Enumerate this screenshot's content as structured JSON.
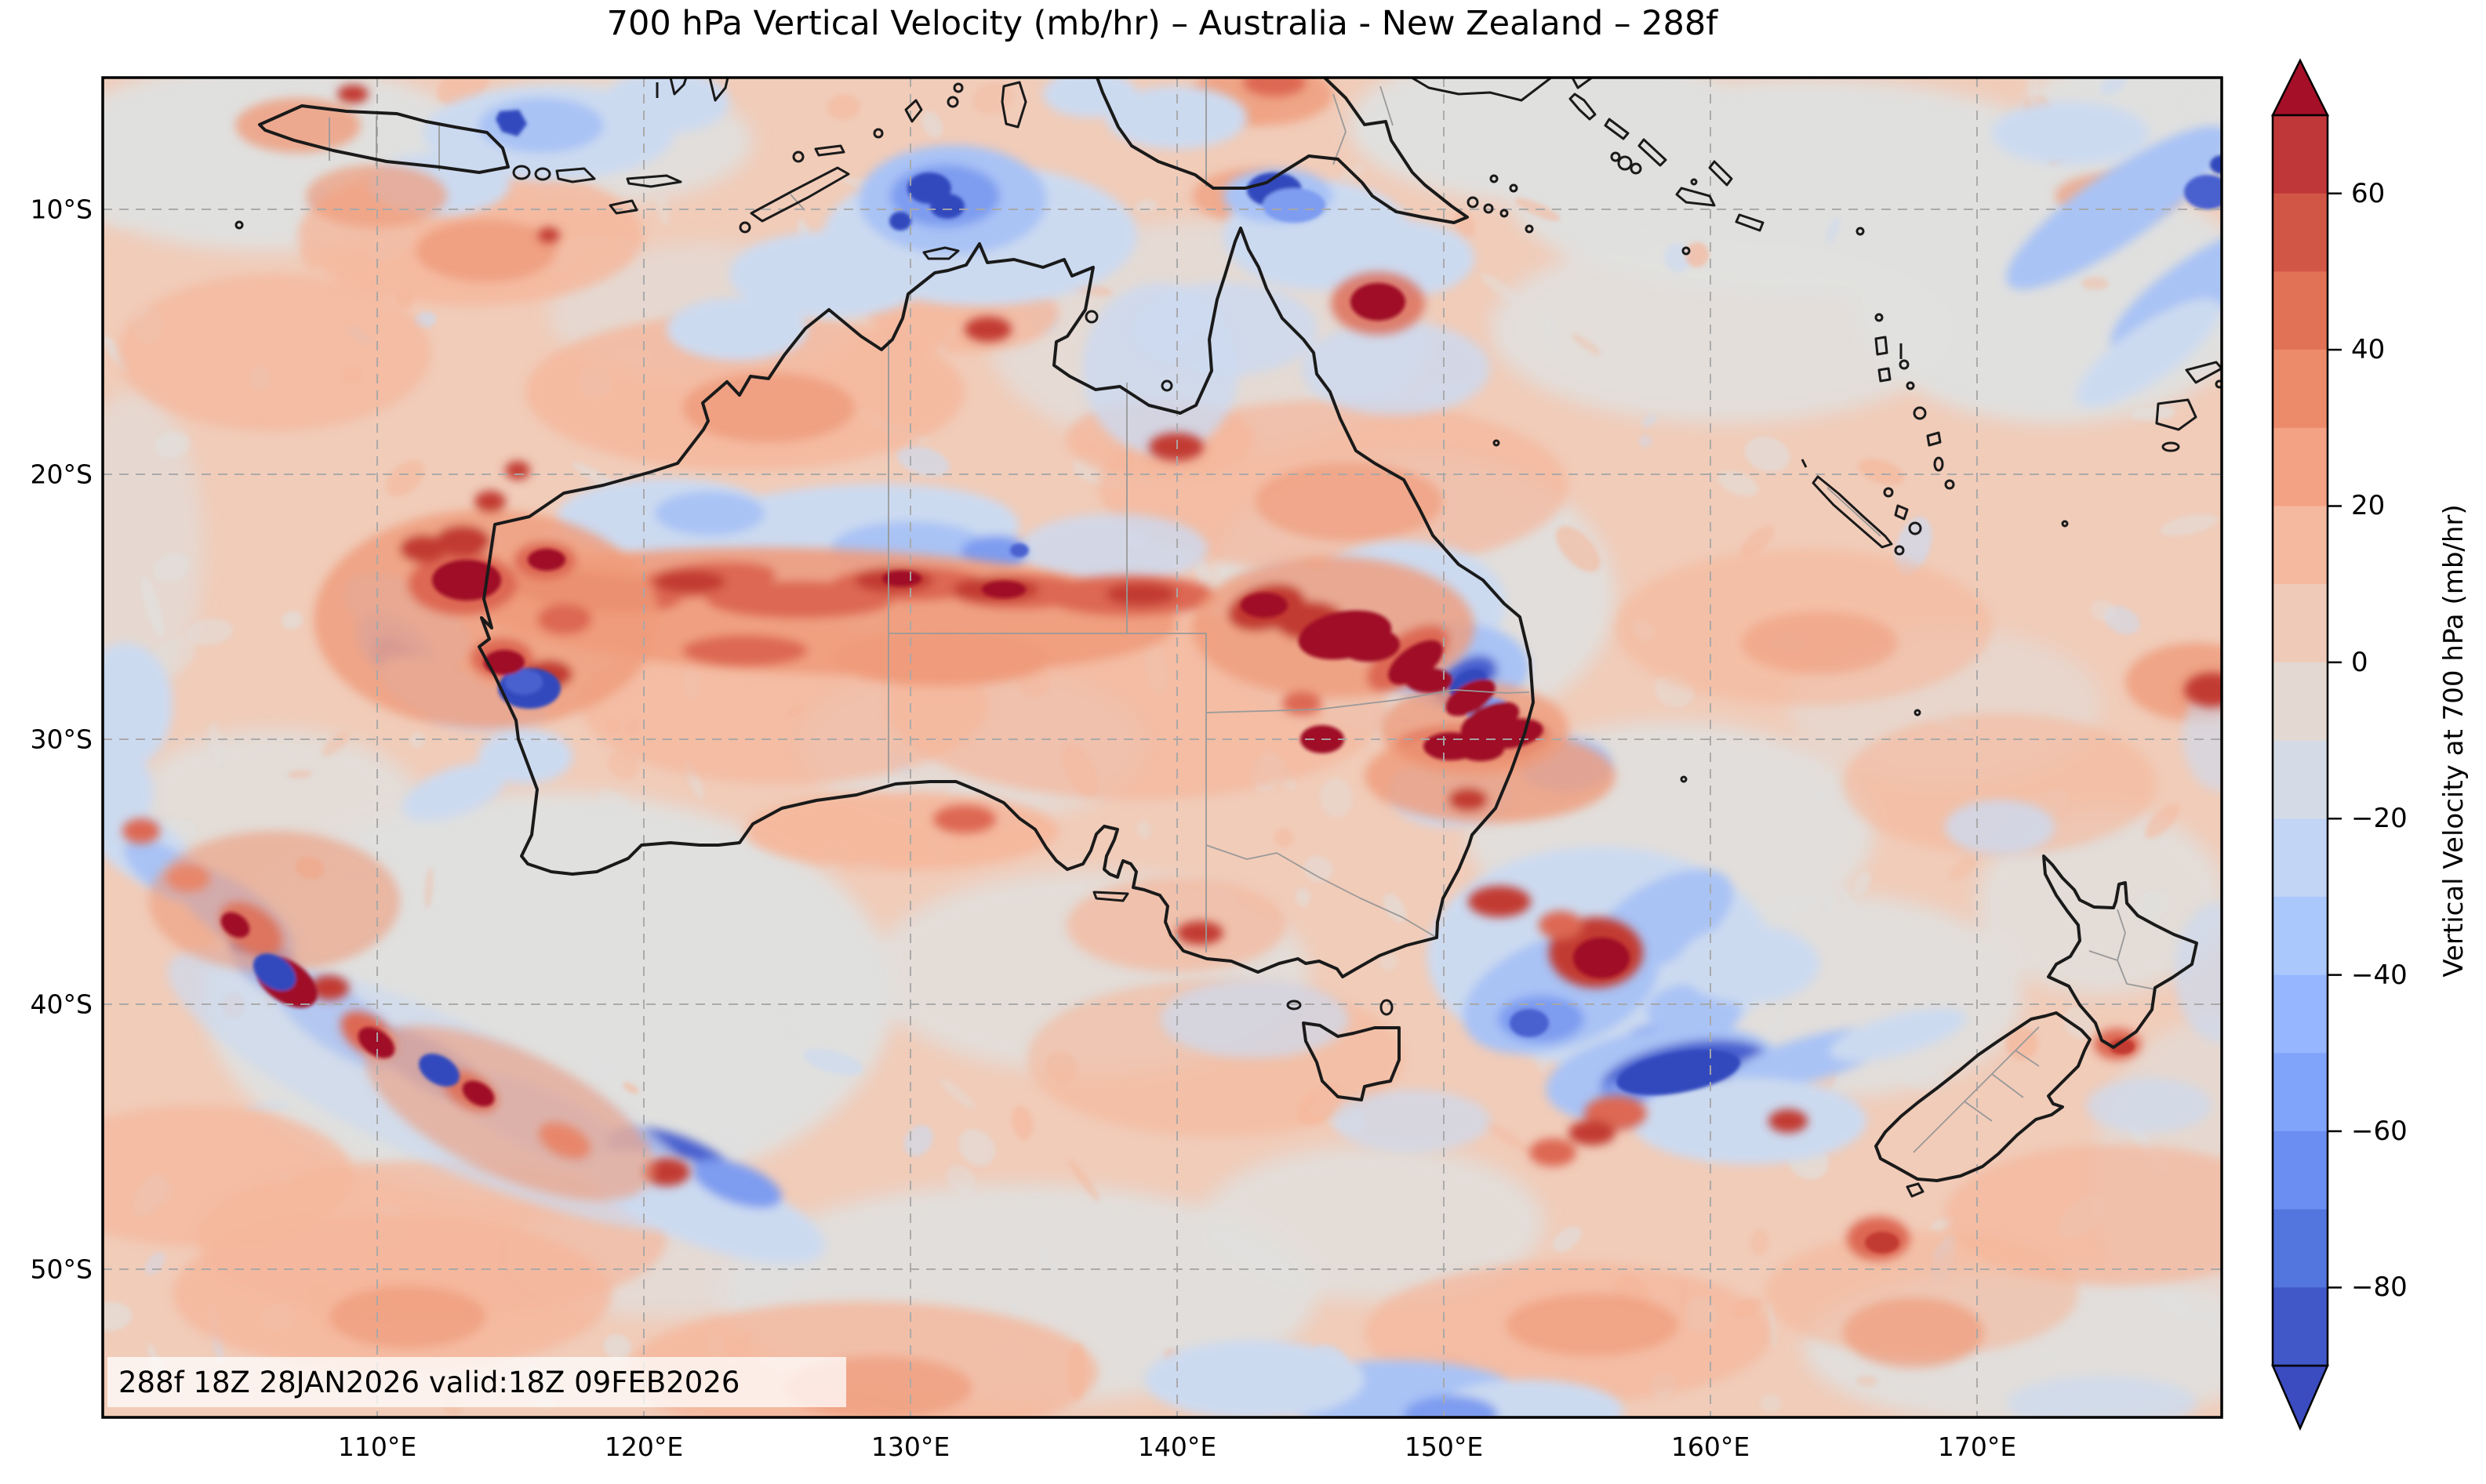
{
  "title": "700 hPa Vertical Velocity (mb/hr) – Australia - New Zealand – 288f",
  "annotation": "288f 18Z 28JAN2026 valid:18Z 09FEB2026",
  "colorbar": {
    "label": "Vertical Velocity at 700 hPa (mb/hr)",
    "tick_labels": [
      "60",
      "40",
      "20",
      "0",
      "−20",
      "−40",
      "−60",
      "−80"
    ],
    "tick_values": [
      60,
      40,
      20,
      0,
      -20,
      -40,
      -60,
      -80
    ],
    "level_min": -90,
    "level_max": 70,
    "level_step": 10,
    "segment_colors_top_to_bottom": [
      "#c0373a",
      "#d25645",
      "#e17256",
      "#ec8b6a",
      "#f4a284",
      "#f5b9a0",
      "#f0cab8",
      "#e3d8d2",
      "#d5dbe6",
      "#c3d5f4",
      "#abc8fd",
      "#96b7ff",
      "#81a4fb",
      "#6a8ef1",
      "#5375de",
      "#4058c8"
    ],
    "extend_over_color": "#a50f28",
    "extend_under_color": "#3b4cc0"
  },
  "axes": {
    "lon_tick_labels": [
      "110°E",
      "120°E",
      "130°E",
      "140°E",
      "150°E",
      "160°E",
      "170°E"
    ],
    "lat_tick_labels": [
      "10°S",
      "20°S",
      "30°S",
      "40°S",
      "50°S"
    ]
  },
  "map_colors": {
    "background": "#f1ccb9",
    "gray_patch": "#e0e0df",
    "salmon_light": "#f5b79b",
    "salmon": "#ef9b7b",
    "red": "#dd6852",
    "red_dark": "#c23b33",
    "red_darkest": "#9f1127",
    "blue_pale": "#ccdaf0",
    "blue_light": "#a9c3f5",
    "blue": "#7e9cf0",
    "blue_deep": "#4a61cf",
    "blue_navy": "#3348bd",
    "coastline": "#1a1a1a",
    "state_border": "#999999",
    "gridline": "#a8a8a8",
    "annotation_bg": "rgba(255,255,255,0.75)"
  }
}
